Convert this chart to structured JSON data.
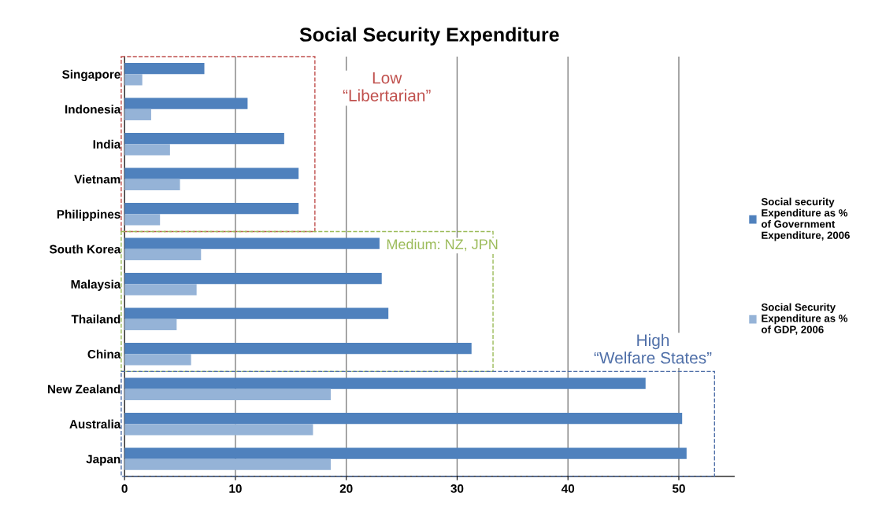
{
  "chart_data": {
    "type": "bar",
    "orientation": "horizontal",
    "title": "Social Security Expenditure",
    "categories": [
      "Singapore",
      "Indonesia",
      "India",
      "Vietnam",
      "Philippines",
      "South Korea",
      "Malaysia",
      "Thailand",
      "China",
      "New Zealand",
      "Australia",
      "Japan"
    ],
    "series": [
      {
        "name": "Social security Expenditure as % of Government Expenditure, 2006",
        "color": "#4f81bd",
        "values": [
          7.2,
          11.1,
          14.4,
          15.7,
          15.7,
          23.0,
          23.2,
          23.8,
          31.3,
          47.0,
          50.3,
          50.7
        ]
      },
      {
        "name": "Social Security Expenditure as % of GDP, 2006",
        "color": "#95b3d7",
        "values": [
          1.6,
          2.4,
          4.1,
          5.0,
          3.2,
          6.9,
          6.5,
          4.7,
          6.0,
          18.6,
          17.0,
          18.6
        ]
      }
    ],
    "xlim": [
      0,
      55
    ],
    "xticks": [
      0,
      10,
      20,
      30,
      40,
      50
    ],
    "grid": "x",
    "legend": "right",
    "annotations": [
      "Low\n“Libertarian”",
      "Medium: NZ, JPN",
      "High\n“Welfare States”"
    ]
  }
}
